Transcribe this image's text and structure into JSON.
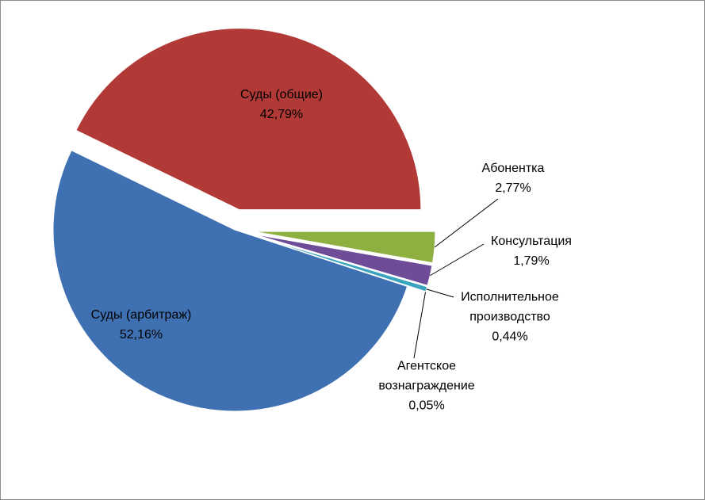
{
  "chart_data": {
    "type": "pie",
    "categories": [
      "Абонентка",
      "Консультация",
      "Исполнительное производство",
      "Агентское вознаграждение",
      "Суды (арбитраж)",
      "Суды (общие)"
    ],
    "values": [
      2.77,
      1.79,
      0.44,
      0.05,
      52.16,
      42.79
    ],
    "value_labels": [
      "2,77%",
      "1,79%",
      "0,44%",
      "0,05%",
      "52,16%",
      "42,79%"
    ],
    "colors": [
      "#8db040",
      "#6e4c98",
      "#3aa3bd",
      "#d07b32",
      "#3e70b2",
      "#b13a37"
    ]
  }
}
